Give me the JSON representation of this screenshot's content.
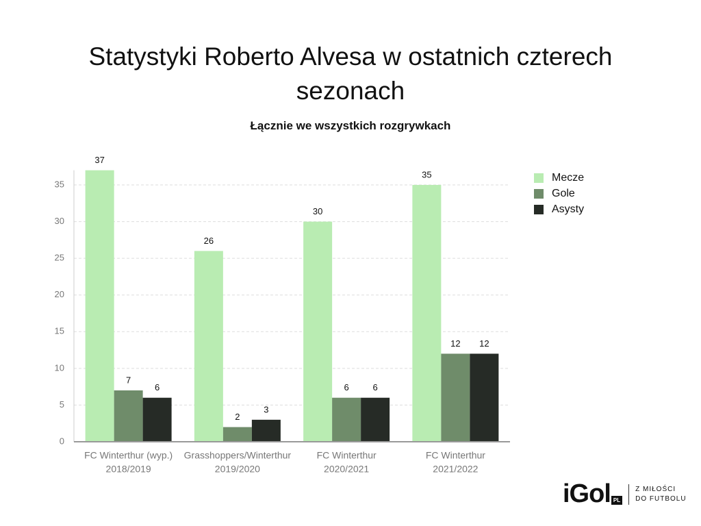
{
  "chart_data": {
    "type": "bar",
    "title": "Statystyki Roberto Alvesa w ostatnich czterech sezonach",
    "subtitle": "Łącznie we wszystkich rozgrywkach",
    "categories": [
      [
        "FC Winterthur (wyp.)",
        "2018/2019"
      ],
      [
        "Grasshoppers/Winterthur",
        "2019/2020"
      ],
      [
        "FC Winterthur",
        "2020/2021"
      ],
      [
        "FC Winterthur",
        "2021/2022"
      ]
    ],
    "series": [
      {
        "name": "Mecze",
        "color": "#b9ecb2",
        "values": [
          37,
          26,
          30,
          35
        ]
      },
      {
        "name": "Gole",
        "color": "#6f8c6a",
        "values": [
          7,
          2,
          6,
          12
        ]
      },
      {
        "name": "Asysty",
        "color": "#262b26",
        "values": [
          6,
          3,
          6,
          12
        ]
      }
    ],
    "ylim": [
      0,
      37
    ],
    "yticks": [
      0,
      5,
      10,
      15,
      20,
      25,
      30,
      35
    ],
    "grid": true,
    "legend": "right"
  },
  "logo": {
    "name": "iGol",
    "badge": "PL",
    "tagline": [
      "Z MIŁOŚCI",
      "DO FUTBOLU"
    ]
  }
}
